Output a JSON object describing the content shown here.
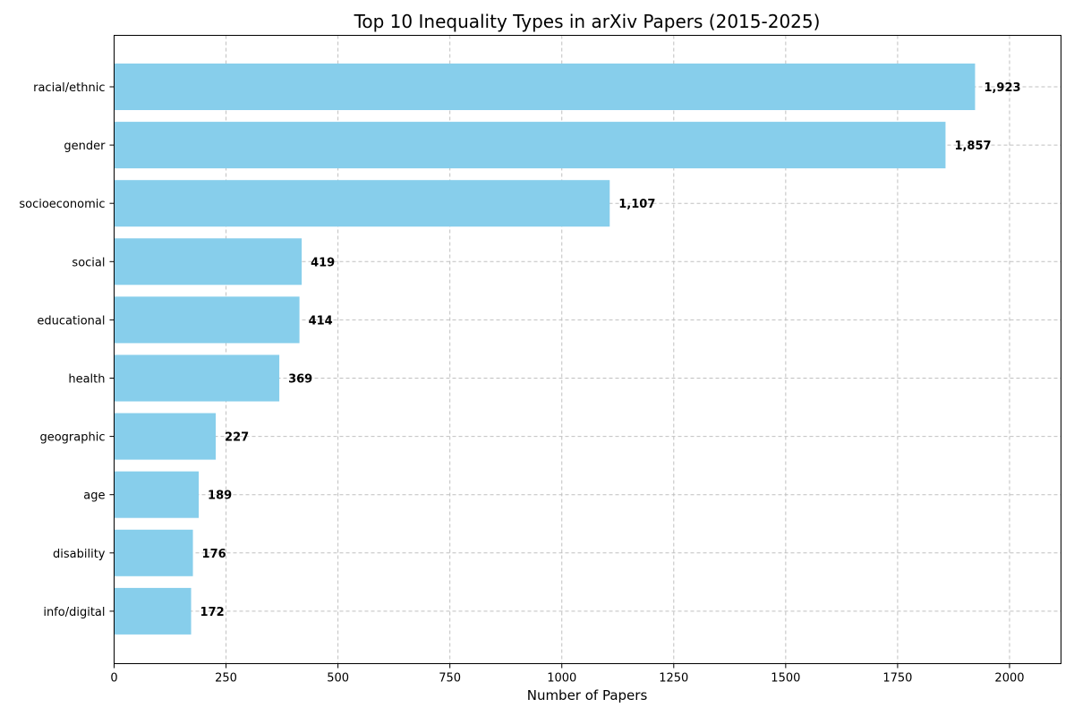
{
  "chart_data": {
    "type": "bar",
    "orientation": "horizontal",
    "title": "Top 10 Inequality Types in arXiv Papers (2015-2025)",
    "xlabel": "Number of Papers",
    "ylabel": "",
    "categories": [
      "racial/ethnic",
      "gender",
      "socioeconomic",
      "social",
      "educational",
      "health",
      "geographic",
      "age",
      "disability",
      "info/digital"
    ],
    "values": [
      1923,
      1857,
      1107,
      419,
      414,
      369,
      227,
      189,
      176,
      172
    ],
    "value_labels": [
      "1,923",
      "1,857",
      "1,107",
      "419",
      "414",
      "369",
      "227",
      "189",
      "176",
      "172"
    ],
    "xlim": [
      0,
      2115
    ],
    "xticks": [
      0,
      250,
      500,
      750,
      1000,
      1250,
      1500,
      1750,
      2000
    ],
    "xtick_labels": [
      "0",
      "250",
      "500",
      "750",
      "1000",
      "1250",
      "1500",
      "1750",
      "2000"
    ],
    "bar_color": "#87ceeb",
    "grid": true,
    "legend": "none"
  }
}
